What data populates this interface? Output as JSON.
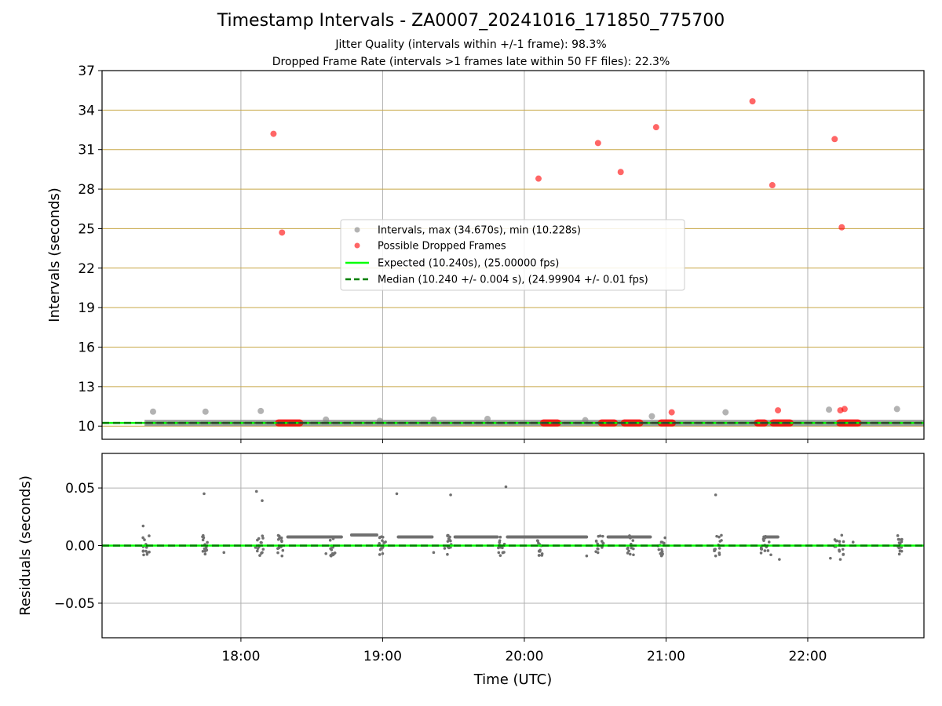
{
  "title": "Timestamp Intervals - ZA0007_20241016_171850_775700",
  "subtitle_jitter": "Jitter Quality (intervals within +/-1 frame): 98.3%",
  "subtitle_dropped": "Dropped Frame Rate (intervals >1 frames late within 50 FF files): 22.3%",
  "colors": {
    "intervals": "#808080",
    "dropped": "#ff0000",
    "expected": "#00ff00",
    "median": "#008000",
    "residuals": "#707070",
    "hgrid_top": "#c8a848",
    "grid": "#b0b0b0"
  },
  "chart_data": [
    {
      "type": "scatter",
      "panel": "intervals",
      "ylabel": "Intervals (seconds)",
      "ylim": [
        9.0,
        37.0
      ],
      "yticks": [
        10,
        13,
        16,
        19,
        22,
        25,
        28,
        31,
        34,
        37
      ],
      "ytick_labels": [
        "10",
        "13",
        "16",
        "19",
        "22",
        "25",
        "28",
        "31",
        "34",
        "37"
      ],
      "xlim_hours": [
        17.02,
        22.82
      ],
      "xticks_hours": [
        18,
        19,
        20,
        21,
        22
      ],
      "xtick_labels": [
        "18:00",
        "19:00",
        "20:00",
        "21:00",
        "22:00"
      ],
      "grid": "on",
      "legend_position": "center",
      "legend": [
        "Intervals, max (34.670s), min (10.228s)",
        "Possible Dropped Frames",
        "Expected (10.240s), (25.00000 fps)",
        "Median (10.240 +/- 0.004 s), (24.99904 +/- 0.01 fps)"
      ],
      "expected_value": 10.24,
      "median_value": 10.24,
      "series": [
        {
          "name": "Intervals, max (34.670s), min (10.228s)",
          "baseline": {
            "x_start": 17.32,
            "x_end": 22.82,
            "y": 10.24
          },
          "points": [
            {
              "x": 17.38,
              "y": 11.1
            },
            {
              "x": 17.75,
              "y": 11.1
            },
            {
              "x": 18.14,
              "y": 11.15
            },
            {
              "x": 18.6,
              "y": 10.5
            },
            {
              "x": 18.98,
              "y": 10.4
            },
            {
              "x": 19.36,
              "y": 10.5
            },
            {
              "x": 19.74,
              "y": 10.55
            },
            {
              "x": 20.43,
              "y": 10.45
            },
            {
              "x": 20.9,
              "y": 10.75
            },
            {
              "x": 21.42,
              "y": 11.05
            },
            {
              "x": 22.15,
              "y": 11.25
            },
            {
              "x": 22.63,
              "y": 11.3
            }
          ]
        },
        {
          "name": "Possible Dropped Frames",
          "points": [
            {
              "x": 18.23,
              "y": 32.2
            },
            {
              "x": 18.29,
              "y": 24.7
            },
            {
              "x": 20.1,
              "y": 28.8
            },
            {
              "x": 20.52,
              "y": 31.5
            },
            {
              "x": 20.68,
              "y": 29.3
            },
            {
              "x": 20.93,
              "y": 32.7
            },
            {
              "x": 21.04,
              "y": 11.05
            },
            {
              "x": 21.61,
              "y": 34.67
            },
            {
              "x": 21.75,
              "y": 28.3
            },
            {
              "x": 21.79,
              "y": 11.2
            },
            {
              "x": 22.19,
              "y": 31.8
            },
            {
              "x": 22.24,
              "y": 25.1
            },
            {
              "x": 22.23,
              "y": 11.2
            },
            {
              "x": 22.26,
              "y": 11.3
            }
          ],
          "clusters": [
            {
              "x_start": 18.24,
              "x_end": 18.44,
              "y": 10.24
            },
            {
              "x_start": 20.11,
              "x_end": 20.26,
              "y": 10.24
            },
            {
              "x_start": 20.52,
              "x_end": 20.66,
              "y": 10.24
            },
            {
              "x_start": 20.68,
              "x_end": 20.84,
              "y": 10.24
            },
            {
              "x_start": 20.94,
              "x_end": 21.07,
              "y": 10.24
            },
            {
              "x_start": 21.62,
              "x_end": 21.72,
              "y": 10.24
            },
            {
              "x_start": 21.73,
              "x_end": 21.9,
              "y": 10.24
            },
            {
              "x_start": 22.2,
              "x_end": 22.38,
              "y": 10.24
            }
          ]
        }
      ]
    },
    {
      "type": "scatter",
      "panel": "residuals",
      "xlabel": "Time (UTC)",
      "ylabel": "Residuals (seconds)",
      "ylim": [
        -0.08,
        0.08
      ],
      "yticks": [
        0.05,
        0.0,
        -0.05
      ],
      "ytick_labels": [
        "0.05",
        "0.00",
        "−0.05"
      ],
      "xlim_hours": [
        17.02,
        22.82
      ],
      "xticks_hours": [
        18,
        19,
        20,
        21,
        22
      ],
      "xtick_labels": [
        "18:00",
        "19:00",
        "20:00",
        "21:00",
        "22:00"
      ],
      "grid": "on",
      "zero_line": 0.0,
      "bands": [
        {
          "x_start": 18.32,
          "x_end": 18.72,
          "y": 0.0075
        },
        {
          "x_start": 18.77,
          "x_end": 18.97,
          "y": 0.0092
        },
        {
          "x_start": 19.1,
          "x_end": 19.36,
          "y": 0.0075
        },
        {
          "x_start": 19.5,
          "x_end": 19.82,
          "y": 0.0075
        },
        {
          "x_start": 19.87,
          "x_end": 20.45,
          "y": 0.0075
        },
        {
          "x_start": 20.58,
          "x_end": 20.9,
          "y": 0.0075
        },
        {
          "x_start": 21.68,
          "x_end": 21.8,
          "y": 0.0075
        }
      ],
      "outliers": [
        {
          "x": 17.74,
          "y": 0.045
        },
        {
          "x": 18.11,
          "y": 0.047
        },
        {
          "x": 18.15,
          "y": 0.039
        },
        {
          "x": 19.1,
          "y": 0.045
        },
        {
          "x": 19.48,
          "y": 0.044
        },
        {
          "x": 19.87,
          "y": 0.051
        },
        {
          "x": 21.35,
          "y": 0.044
        },
        {
          "x": 17.31,
          "y": 0.017
        },
        {
          "x": 17.31,
          "y": -0.005
        },
        {
          "x": 17.88,
          "y": -0.006
        },
        {
          "x": 18.15,
          "y": -0.006
        },
        {
          "x": 18.29,
          "y": -0.009
        },
        {
          "x": 18.6,
          "y": -0.007
        },
        {
          "x": 19.0,
          "y": -0.007
        },
        {
          "x": 19.36,
          "y": -0.006
        },
        {
          "x": 20.11,
          "y": -0.005
        },
        {
          "x": 20.44,
          "y": -0.009
        },
        {
          "x": 20.77,
          "y": -0.008
        },
        {
          "x": 20.96,
          "y": -0.007
        },
        {
          "x": 21.74,
          "y": -0.008
        },
        {
          "x": 21.8,
          "y": -0.012
        },
        {
          "x": 22.16,
          "y": -0.011
        },
        {
          "x": 22.23,
          "y": -0.012
        },
        {
          "x": 22.24,
          "y": 0.009
        },
        {
          "x": 22.2,
          "y": 0.004
        },
        {
          "x": 22.32,
          "y": 0.003
        }
      ],
      "clusters": [
        {
          "x_center": 17.33,
          "spread": 0.05
        },
        {
          "x_center": 17.75,
          "spread": 0.05
        },
        {
          "x_center": 18.13,
          "spread": 0.06
        },
        {
          "x_center": 18.28,
          "spread": 0.04
        },
        {
          "x_center": 18.65,
          "spread": 0.04
        },
        {
          "x_center": 19.0,
          "spread": 0.05
        },
        {
          "x_center": 19.46,
          "spread": 0.05
        },
        {
          "x_center": 19.84,
          "spread": 0.05
        },
        {
          "x_center": 20.11,
          "spread": 0.04
        },
        {
          "x_center": 20.53,
          "spread": 0.06
        },
        {
          "x_center": 20.75,
          "spread": 0.05
        },
        {
          "x_center": 20.97,
          "spread": 0.05
        },
        {
          "x_center": 21.37,
          "spread": 0.06
        },
        {
          "x_center": 21.7,
          "spread": 0.07
        },
        {
          "x_center": 22.23,
          "spread": 0.08
        },
        {
          "x_center": 22.65,
          "spread": 0.03
        }
      ]
    }
  ]
}
